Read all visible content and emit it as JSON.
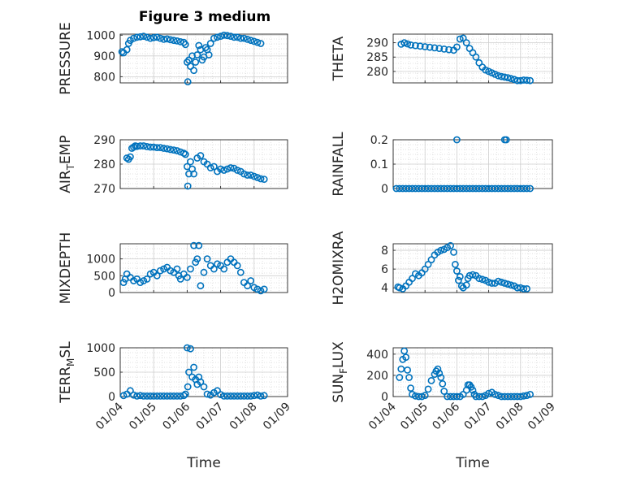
{
  "figure": {
    "title": "Figure 3 medium"
  },
  "style": {
    "marker_color": "#0072BD",
    "axes_color": "#262626",
    "grid_color": "#d8d8d8"
  },
  "chart_data": [
    {
      "id": "pressure",
      "type": "scatter",
      "marker": "circle-open",
      "title": "",
      "xlabel": "",
      "ylabel": "PRESSURE",
      "ylim": [
        770,
        1005
      ],
      "yticks": [
        800,
        900,
        1000
      ],
      "x_numeric": "days from 01/04",
      "xlim": [
        0,
        5
      ],
      "xticks": [
        0,
        1,
        2,
        3,
        4,
        5
      ],
      "xticklabels": [],
      "grid": "on-minor",
      "x": [
        0.05,
        0.1,
        0.2,
        0.25,
        0.3,
        0.4,
        0.5,
        0.6,
        0.7,
        0.8,
        0.9,
        1.0,
        1.1,
        1.2,
        1.3,
        1.4,
        1.5,
        1.6,
        1.7,
        1.8,
        1.9,
        1.95,
        2.0,
        2.02,
        2.05,
        2.1,
        2.15,
        2.2,
        2.25,
        2.3,
        2.35,
        2.4,
        2.45,
        2.5,
        2.55,
        2.6,
        2.65,
        2.7,
        2.8,
        2.9,
        3.0,
        3.1,
        3.2,
        3.3,
        3.4,
        3.5,
        3.6,
        3.7,
        3.8,
        3.9,
        4.0,
        4.1,
        4.2
      ],
      "y": [
        920,
        915,
        930,
        960,
        975,
        985,
        990,
        992,
        995,
        990,
        985,
        988,
        990,
        985,
        980,
        982,
        978,
        975,
        972,
        968,
        965,
        955,
        870,
        775,
        880,
        850,
        900,
        830,
        870,
        905,
        950,
        930,
        880,
        895,
        940,
        930,
        905,
        960,
        985,
        990,
        995,
        1000,
        998,
        995,
        990,
        990,
        985,
        985,
        980,
        975,
        970,
        965,
        960
      ]
    },
    {
      "id": "theta",
      "type": "scatter",
      "marker": "circle-open",
      "title": "",
      "xlabel": "",
      "ylabel": "THETA",
      "ylim": [
        276,
        293
      ],
      "yticks": [
        280,
        285,
        290
      ],
      "xlim": [
        0,
        5
      ],
      "xticks": [
        0,
        1,
        2,
        3,
        4,
        5
      ],
      "xticklabels": [],
      "grid": "on-minor",
      "x": [
        0.25,
        0.35,
        0.45,
        0.55,
        0.7,
        0.85,
        1.0,
        1.15,
        1.3,
        1.45,
        1.6,
        1.75,
        1.9,
        2.0,
        2.1,
        2.2,
        2.3,
        2.4,
        2.5,
        2.6,
        2.7,
        2.8,
        2.9,
        3.0,
        3.1,
        3.2,
        3.3,
        3.4,
        3.5,
        3.6,
        3.7,
        3.8,
        3.9,
        4.0,
        4.1,
        4.2,
        4.3
      ],
      "y": [
        289.5,
        290,
        289.6,
        289.2,
        289,
        288.8,
        288.6,
        288.4,
        288.2,
        288,
        287.8,
        287.6,
        287.4,
        288.5,
        291.3,
        291.6,
        290,
        288,
        286.5,
        285,
        283,
        281.5,
        280.5,
        280,
        279.5,
        279,
        278.5,
        278.2,
        278,
        277.8,
        277.5,
        277.2,
        276.8,
        276.8,
        277,
        276.9,
        276.8
      ]
    },
    {
      "id": "air_temp",
      "type": "scatter",
      "marker": "circle-open",
      "title": "",
      "xlabel": "",
      "ylabel": "AIR_TEMP",
      "ylabel_main": "AIR",
      "ylabel_sub": "T",
      "ylabel_rest": "EMP",
      "ylim": [
        270,
        290
      ],
      "yticks": [
        270,
        280,
        290
      ],
      "xlim": [
        0,
        5
      ],
      "xticks": [
        0,
        1,
        2,
        3,
        4,
        5
      ],
      "xticklabels": [],
      "grid": "on-minor",
      "x": [
        0.2,
        0.25,
        0.3,
        0.35,
        0.4,
        0.45,
        0.5,
        0.6,
        0.7,
        0.8,
        0.9,
        1.0,
        1.1,
        1.2,
        1.3,
        1.4,
        1.5,
        1.6,
        1.7,
        1.8,
        1.9,
        1.95,
        2.0,
        2.02,
        2.05,
        2.1,
        2.15,
        2.2,
        2.3,
        2.4,
        2.5,
        2.6,
        2.7,
        2.8,
        2.9,
        3.0,
        3.1,
        3.2,
        3.3,
        3.4,
        3.5,
        3.6,
        3.7,
        3.8,
        3.9,
        4.0,
        4.1,
        4.2,
        4.3
      ],
      "y": [
        282.5,
        282,
        283,
        286.5,
        287,
        287.5,
        287.3,
        287.5,
        287.5,
        287.2,
        287,
        287,
        286.8,
        286.8,
        286.5,
        286.3,
        286,
        285.8,
        285.5,
        285,
        284.5,
        284,
        279,
        271,
        276,
        281,
        278,
        276,
        282.5,
        283.5,
        281,
        280,
        278.5,
        279,
        277,
        278,
        277.5,
        278,
        278.5,
        278.3,
        277.5,
        277,
        276,
        275.5,
        275.5,
        275,
        274.5,
        274,
        273.8
      ]
    },
    {
      "id": "rainfall",
      "type": "scatter",
      "marker": "circle-open",
      "title": "",
      "xlabel": "",
      "ylabel": "RAINFALL",
      "ylim": [
        0,
        0.2
      ],
      "yticks": [
        0,
        0.1,
        0.2
      ],
      "xlim": [
        0,
        5
      ],
      "xticks": [
        0,
        1,
        2,
        3,
        4,
        5
      ],
      "xticklabels": [],
      "grid": "on-minor",
      "x": [
        0.1,
        0.2,
        0.3,
        0.4,
        0.5,
        0.6,
        0.7,
        0.8,
        0.9,
        1.0,
        1.1,
        1.2,
        1.3,
        1.4,
        1.5,
        1.6,
        1.7,
        1.8,
        1.9,
        2.0,
        2.1,
        2.2,
        2.3,
        2.4,
        2.5,
        2.6,
        2.7,
        2.8,
        2.9,
        3.0,
        3.1,
        3.2,
        3.3,
        3.4,
        3.5,
        3.6,
        3.7,
        3.8,
        3.9,
        4.0,
        4.1,
        4.2,
        4.3,
        2.0,
        3.5,
        3.55
      ],
      "y": [
        0,
        0,
        0,
        0,
        0,
        0,
        0,
        0,
        0,
        0,
        0,
        0,
        0,
        0,
        0,
        0,
        0,
        0,
        0,
        0,
        0,
        0,
        0,
        0,
        0,
        0,
        0,
        0,
        0,
        0,
        0,
        0,
        0,
        0,
        0,
        0,
        0,
        0,
        0,
        0,
        0,
        0,
        0,
        0.2,
        0.2,
        0.2
      ]
    },
    {
      "id": "mixdepth",
      "type": "scatter",
      "marker": "circle-open",
      "title": "",
      "xlabel": "",
      "ylabel": "MIXDEPTH",
      "ylim": [
        0,
        1450
      ],
      "yticks": [
        0,
        500,
        1000
      ],
      "xlim": [
        0,
        5
      ],
      "xticks": [
        0,
        1,
        2,
        3,
        4,
        5
      ],
      "xticklabels": [],
      "grid": "on-minor",
      "x": [
        0.1,
        0.15,
        0.2,
        0.3,
        0.4,
        0.5,
        0.6,
        0.7,
        0.8,
        0.9,
        1.0,
        1.1,
        1.2,
        1.3,
        1.4,
        1.5,
        1.6,
        1.7,
        1.75,
        1.8,
        1.9,
        2.0,
        2.1,
        2.2,
        2.25,
        2.3,
        2.35,
        2.4,
        2.5,
        2.6,
        2.7,
        2.8,
        2.9,
        3.0,
        3.1,
        3.2,
        3.3,
        3.4,
        3.5,
        3.6,
        3.7,
        3.8,
        3.9,
        4.0,
        4.1,
        4.2,
        4.3
      ],
      "y": [
        300,
        400,
        550,
        450,
        350,
        400,
        300,
        350,
        400,
        550,
        600,
        500,
        650,
        700,
        750,
        650,
        600,
        700,
        500,
        400,
        550,
        450,
        700,
        1400,
        900,
        1000,
        1400,
        200,
        600,
        1000,
        800,
        700,
        850,
        800,
        700,
        900,
        1000,
        900,
        800,
        600,
        300,
        200,
        350,
        150,
        100,
        50,
        100
      ]
    },
    {
      "id": "h2omixra",
      "type": "scatter",
      "marker": "circle-open",
      "title": "",
      "xlabel": "",
      "ylabel": "H2OMIXRA",
      "ylim": [
        3.5,
        8.7
      ],
      "yticks": [
        4,
        6,
        8
      ],
      "xlim": [
        0,
        5
      ],
      "xticks": [
        0,
        1,
        2,
        3,
        4,
        5
      ],
      "xticklabels": [],
      "grid": "on-minor",
      "x": [
        0.15,
        0.2,
        0.3,
        0.4,
        0.5,
        0.6,
        0.7,
        0.8,
        0.9,
        1.0,
        1.1,
        1.2,
        1.3,
        1.4,
        1.5,
        1.6,
        1.7,
        1.8,
        1.9,
        1.95,
        2.0,
        2.05,
        2.1,
        2.15,
        2.2,
        2.3,
        2.35,
        2.4,
        2.5,
        2.6,
        2.7,
        2.8,
        2.9,
        3.0,
        3.1,
        3.2,
        3.3,
        3.4,
        3.5,
        3.6,
        3.7,
        3.8,
        3.9,
        4.0,
        4.1,
        4.2
      ],
      "y": [
        4.1,
        4.0,
        3.9,
        4.2,
        4.6,
        5.0,
        5.5,
        5.3,
        5.6,
        6.0,
        6.5,
        7.0,
        7.5,
        7.8,
        8.0,
        8.1,
        8.3,
        8.5,
        7.8,
        6.5,
        5.8,
        4.8,
        5.2,
        4.2,
        4.0,
        4.3,
        5.0,
        5.3,
        5.4,
        5.3,
        5.0,
        4.9,
        4.8,
        4.6,
        4.5,
        4.5,
        4.7,
        4.6,
        4.5,
        4.4,
        4.3,
        4.2,
        4.0,
        4.0,
        3.9,
        3.9
      ]
    },
    {
      "id": "terr_msl",
      "type": "scatter",
      "marker": "circle-open",
      "title": "",
      "xlabel": "Time",
      "ylabel": "TERR_MSL",
      "ylabel_main": "TERR",
      "ylabel_sub": "M",
      "ylabel_rest": "SL",
      "ylim": [
        0,
        1000
      ],
      "yticks": [
        0,
        500,
        1000
      ],
      "xlim": [
        0,
        5
      ],
      "xticks": [
        0,
        1,
        2,
        3,
        4,
        5
      ],
      "xticklabels": [
        "01/04",
        "01/05",
        "01/06",
        "01/07",
        "01/08",
        "01/09"
      ],
      "grid": "on-minor",
      "x": [
        0.1,
        0.2,
        0.3,
        0.4,
        0.5,
        0.6,
        0.7,
        0.8,
        0.9,
        1.0,
        1.1,
        1.2,
        1.3,
        1.4,
        1.5,
        1.6,
        1.7,
        1.8,
        1.9,
        1.95,
        2.0,
        2.02,
        2.05,
        2.1,
        2.15,
        2.2,
        2.25,
        2.3,
        2.35,
        2.4,
        2.5,
        2.6,
        2.7,
        2.8,
        2.9,
        3.0,
        3.1,
        3.2,
        3.3,
        3.4,
        3.5,
        3.6,
        3.7,
        3.8,
        3.9,
        4.0,
        4.1,
        4.2,
        4.3
      ],
      "y": [
        20,
        50,
        120,
        30,
        10,
        20,
        10,
        10,
        10,
        10,
        10,
        10,
        10,
        10,
        10,
        10,
        10,
        10,
        20,
        50,
        1000,
        200,
        500,
        980,
        400,
        600,
        350,
        250,
        400,
        300,
        200,
        50,
        30,
        80,
        120,
        40,
        10,
        10,
        10,
        10,
        10,
        10,
        10,
        10,
        10,
        20,
        30,
        10,
        20
      ]
    },
    {
      "id": "sun_flux",
      "type": "scatter",
      "marker": "circle-open",
      "title": "",
      "xlabel": "Time",
      "ylabel": "SUN_FLUX",
      "ylabel_main": "SUN",
      "ylabel_sub": "F",
      "ylabel_rest": "LUX",
      "ylim": [
        0,
        460
      ],
      "yticks": [
        0,
        200,
        400
      ],
      "xlim": [
        0,
        5
      ],
      "xticks": [
        0,
        1,
        2,
        3,
        4,
        5
      ],
      "xticklabels": [
        "01/04",
        "01/05",
        "01/06",
        "01/07",
        "01/08",
        "01/09"
      ],
      "grid": "on-minor",
      "x": [
        0.2,
        0.25,
        0.3,
        0.35,
        0.4,
        0.45,
        0.5,
        0.55,
        0.6,
        0.7,
        0.8,
        0.9,
        1.0,
        1.1,
        1.2,
        1.3,
        1.35,
        1.4,
        1.45,
        1.5,
        1.55,
        1.6,
        1.7,
        1.8,
        1.9,
        2.0,
        2.1,
        2.2,
        2.3,
        2.35,
        2.4,
        2.45,
        2.5,
        2.55,
        2.6,
        2.7,
        2.8,
        2.9,
        3.0,
        3.1,
        3.2,
        3.3,
        3.4,
        3.5,
        3.6,
        3.7,
        3.8,
        3.9,
        4.0,
        4.1,
        4.2,
        4.3
      ],
      "y": [
        180,
        260,
        350,
        430,
        370,
        250,
        180,
        80,
        20,
        5,
        0,
        0,
        10,
        70,
        150,
        210,
        240,
        260,
        220,
        180,
        120,
        50,
        0,
        0,
        0,
        0,
        0,
        20,
        60,
        110,
        110,
        90,
        60,
        20,
        0,
        0,
        0,
        10,
        30,
        40,
        20,
        10,
        0,
        0,
        0,
        0,
        0,
        0,
        0,
        5,
        10,
        20
      ]
    }
  ]
}
